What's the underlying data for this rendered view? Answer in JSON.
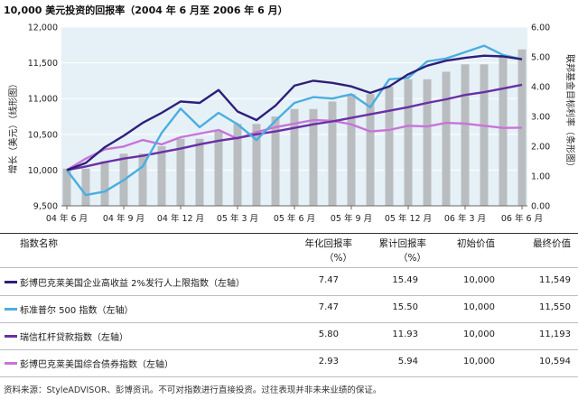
{
  "chart_data": {
    "type": "line",
    "title": "10,000 美元投资的回报率（2004 年 6 月至 2006 年 6 月）",
    "ylabel_left": "增长（美元）（线形图）",
    "ylabel_right": "联邦基金目标利率（条形图）",
    "ylim_left": [
      9500,
      12000
    ],
    "ylim_right": [
      0.0,
      6.0
    ],
    "yticks_left": [
      "9,500",
      "10,000",
      "10,500",
      "11,000",
      "11,500",
      "12,000"
    ],
    "yticks_right": [
      "0.00",
      "1.00",
      "2.00",
      "3.00",
      "4.00",
      "5.00",
      "6.00"
    ],
    "x_ticks": [
      {
        "i": 0,
        "label": "04 年 6 月"
      },
      {
        "i": 3,
        "label": "04 年 9 月"
      },
      {
        "i": 6,
        "label": "04 年 12 月"
      },
      {
        "i": 9,
        "label": "05 年 3 月"
      },
      {
        "i": 12,
        "label": "05 年 6 月"
      },
      {
        "i": 15,
        "label": "05 年 9 月"
      },
      {
        "i": 18,
        "label": "05 年 12 月"
      },
      {
        "i": 21,
        "label": "06 年 3 月"
      },
      {
        "i": 24,
        "label": "06 年 6 月"
      }
    ],
    "bars_axis": "right",
    "bars": [
      1.25,
      1.25,
      1.5,
      1.75,
      1.75,
      2.0,
      2.25,
      2.25,
      2.5,
      2.75,
      2.75,
      3.0,
      3.25,
      3.25,
      3.5,
      3.75,
      3.75,
      4.0,
      4.25,
      4.25,
      4.5,
      4.75,
      4.75,
      5.0,
      5.25
    ],
    "series": [
      {
        "name": "彭博巴克莱美国企业高收益 2%发行人上限指数（左轴）",
        "color": "#2d1f7a",
        "values": [
          10000,
          10100,
          10320,
          10480,
          10660,
          10800,
          10960,
          10940,
          11120,
          10820,
          10700,
          10900,
          11180,
          11250,
          11220,
          11170,
          11080,
          11170,
          11340,
          11460,
          11530,
          11570,
          11600,
          11590,
          11549
        ]
      },
      {
        "name": "标准普尔 500 指数（左轴）",
        "color": "#4aaee0",
        "values": [
          10000,
          9650,
          9700,
          9860,
          10050,
          10520,
          10860,
          10600,
          10800,
          10640,
          10420,
          10690,
          10940,
          11020,
          11000,
          11060,
          10880,
          11270,
          11290,
          11520,
          11560,
          11650,
          11740,
          11610,
          11550
        ]
      },
      {
        "name": "瑞信杠杆贷款指数（左轴）",
        "color": "#6a2fa6",
        "values": [
          10000,
          10050,
          10110,
          10160,
          10200,
          10250,
          10300,
          10360,
          10410,
          10450,
          10500,
          10540,
          10590,
          10640,
          10680,
          10730,
          10780,
          10830,
          10880,
          10940,
          10990,
          11050,
          11090,
          11140,
          11193
        ]
      },
      {
        "name": "彭博巴克莱美国综合债券指数（左轴）",
        "color": "#c874d8",
        "values": [
          10000,
          10160,
          10290,
          10330,
          10420,
          10360,
          10460,
          10510,
          10560,
          10440,
          10530,
          10600,
          10650,
          10700,
          10690,
          10640,
          10540,
          10560,
          10620,
          10610,
          10660,
          10650,
          10620,
          10590,
          10594
        ]
      }
    ]
  },
  "table": {
    "headers": {
      "name": "指数名称",
      "annualized_1": "年化回报率",
      "annualized_2": "（%）",
      "cumulative_1": "累计回报率",
      "cumulative_2": "（%）",
      "initial": "初始价值",
      "final": "最终价值"
    },
    "rows": [
      {
        "name": "彭博巴克莱美国企业高收益 2%发行人上限指数（左轴）",
        "annualized": "7.47",
        "cumulative": "15.49",
        "initial": "10,000",
        "final": "11,549"
      },
      {
        "name": "标准普尔 500 指数（左轴）",
        "annualized": "7.47",
        "cumulative": "15.50",
        "initial": "10,000",
        "final": "11,550"
      },
      {
        "name": "瑞信杠杆贷款指数（左轴）",
        "annualized": "5.80",
        "cumulative": "11.93",
        "initial": "10,000",
        "final": "11,193"
      },
      {
        "name": "彭博巴克莱美国综合债券指数（左轴）",
        "annualized": "2.93",
        "cumulative": "5.94",
        "initial": "10,000",
        "final": "10,594"
      }
    ]
  },
  "source_note": "资料来源：StyleADVISOR、彭博资讯。不可对指数进行直接投资。过往表现并非未来业绩的保证。",
  "colors": {
    "bar": "#b9bdc0",
    "plot_bg": "#e6f1f7",
    "grid": "#ffffff"
  }
}
